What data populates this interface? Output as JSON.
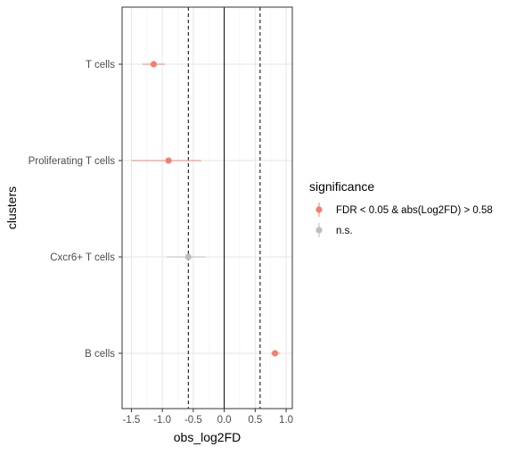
{
  "chart_data": {
    "type": "scatter",
    "subtype": "forest-plot-with-error-bars",
    "xlabel": "obs_log2FD",
    "ylabel": "clusters",
    "xlim": [
      -1.65,
      1.1
    ],
    "x_ticks": [
      -1.5,
      -1.0,
      -0.5,
      0.0,
      0.5,
      1.0
    ],
    "x_tick_labels": [
      "-1.5",
      "-1.0",
      "-0.5",
      "0.0",
      "0.5",
      "1.0"
    ],
    "categories": [
      "T cells",
      "Proliferating T cells",
      "Cxcr6+ T cells",
      "B cells"
    ],
    "points": [
      {
        "cluster": "T cells",
        "x": -1.14,
        "lo": -1.32,
        "hi": -0.96,
        "significance": "FDR < 0.05 & abs(Log2FD) > 0.58"
      },
      {
        "cluster": "Proliferating T cells",
        "x": -0.9,
        "lo": -1.5,
        "hi": -0.37,
        "significance": "FDR < 0.05 & abs(Log2FD) > 0.58"
      },
      {
        "cluster": "Cxcr6+ T cells",
        "x": -0.58,
        "lo": -0.93,
        "hi": -0.3,
        "significance": "n.s."
      },
      {
        "cluster": "B cells",
        "x": 0.82,
        "lo": 0.76,
        "hi": 0.9,
        "significance": "FDR < 0.05 & abs(Log2FD) > 0.58"
      }
    ],
    "reference_lines": {
      "solid": [
        0
      ],
      "dashed": [
        -0.58,
        0.58
      ]
    },
    "grid": true,
    "legend": {
      "title": "significance",
      "placement": "right",
      "entries": [
        {
          "label": "FDR < 0.05 & abs(Log2FD) > 0.58",
          "color": "#F08070"
        },
        {
          "label": "n.s.",
          "color": "#BDBDBD"
        }
      ]
    }
  }
}
